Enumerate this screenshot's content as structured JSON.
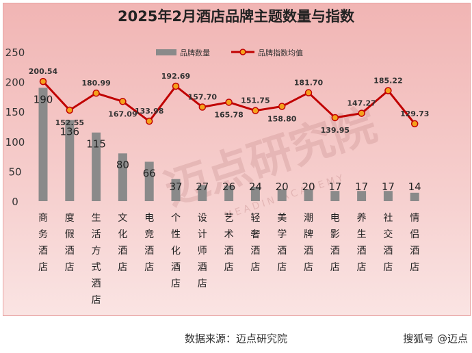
{
  "chart_data": {
    "type": "bar+line",
    "title": "2025年2月酒店品牌主题数量与指数",
    "categories": [
      "商务酒店",
      "度假酒店",
      "生活方式酒店",
      "文化酒店",
      "电竞酒店",
      "个性化酒店",
      "设计师酒店",
      "艺术酒店",
      "轻奢酒店",
      "美学酒店",
      "潮牌酒店",
      "电影酒店",
      "养生酒店",
      "社交酒店",
      "情侣酒店"
    ],
    "series": [
      {
        "name": "品牌数量",
        "type": "bar",
        "color": "#8a8a8a",
        "values": [
          190,
          136,
          115,
          80,
          66,
          37,
          27,
          26,
          24,
          20,
          20,
          17,
          17,
          17,
          14
        ]
      },
      {
        "name": "品牌指数均值",
        "type": "line",
        "color": "#c00000",
        "marker": "#f4a21c",
        "values": [
          200.54,
          152.55,
          180.99,
          167.09,
          133.98,
          192.69,
          157.7,
          165.78,
          151.75,
          158.8,
          181.7,
          139.95,
          147.27,
          185.22,
          129.73
        ]
      }
    ],
    "yticks": [
      "0",
      "50",
      "100",
      "150",
      "200",
      "250"
    ],
    "ylim": [
      0,
      250
    ],
    "legend_position": "top-center",
    "grid": false
  },
  "watermark": {
    "main": "迈点研究院",
    "sub": "MEADIN ACADEMY"
  },
  "footer": {
    "source": "数据来源：迈点研究院",
    "platform": "搜狐号 @迈点"
  }
}
